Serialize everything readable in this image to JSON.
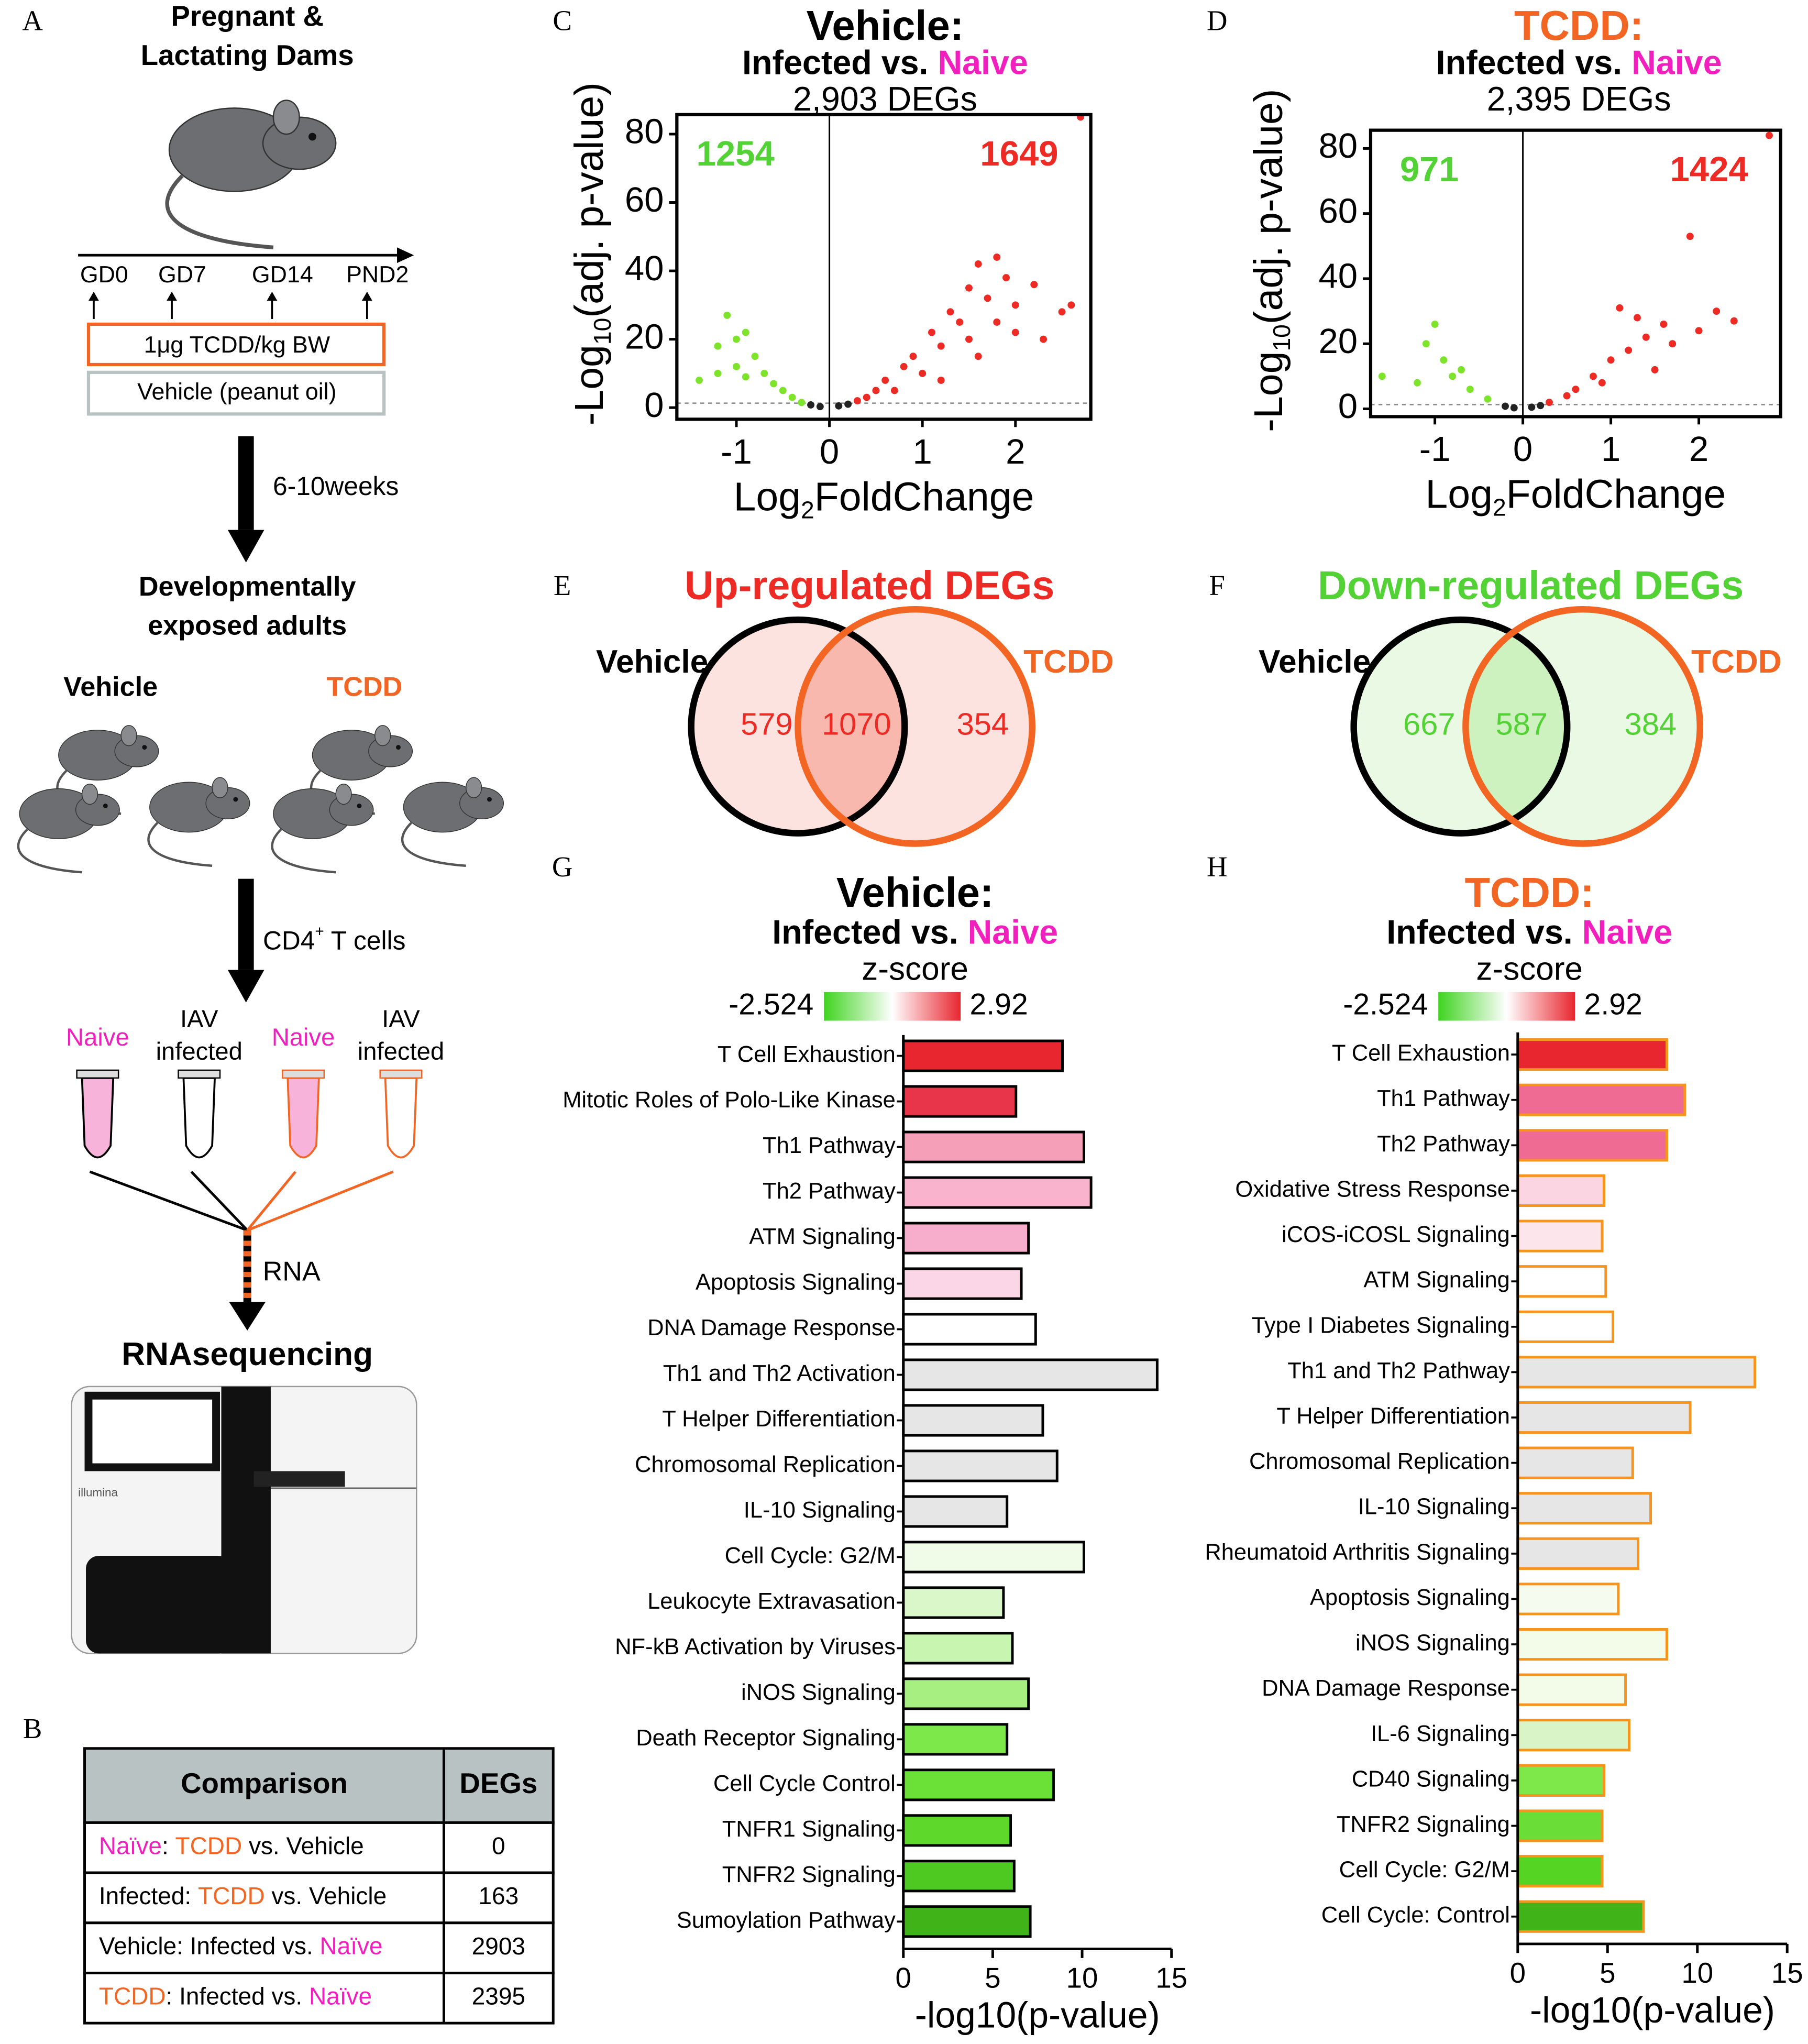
{
  "panel_labels": [
    "A",
    "B",
    "C",
    "D",
    "E",
    "F",
    "G",
    "H"
  ],
  "panel_a": {
    "title": [
      "Pregnant &",
      "Lactating Dams"
    ],
    "timeline": [
      "GD0",
      "GD7",
      "GD14",
      "PND2"
    ],
    "treatment": "1μg TCDD/kg BW",
    "control": "Vehicle (peanut oil)",
    "interval": "6-10weeks",
    "adults": [
      "Developmentally",
      "exposed adults"
    ],
    "groups": [
      {
        "text": "Vehicle",
        "color": "#000000"
      },
      {
        "text": "TCDD",
        "color": "#f26522"
      }
    ],
    "cells": [
      "CD4",
      "+",
      " T cells"
    ],
    "samples": [
      {
        "lines": [
          "Naive"
        ],
        "color": "#f21fbf",
        "tube": "#000000",
        "liquid": "#f7b3d9"
      },
      {
        "lines": [
          "IAV",
          "infected"
        ],
        "color": "#000000",
        "tube": "#000000",
        "liquid": "#ffffff"
      },
      {
        "lines": [
          "Naive"
        ],
        "color": "#f21fbf",
        "tube": "#f26522",
        "liquid": "#f7b3d9"
      },
      {
        "lines": [
          "IAV",
          "infected"
        ],
        "color": "#000000",
        "tube": "#f26522",
        "liquid": "#ffffff"
      }
    ],
    "rna": "RNA",
    "sequencing": "RNAsequencing",
    "instrument": "illumina"
  },
  "panel_b": {
    "header": [
      "Comparison",
      "DEGs"
    ],
    "rows": [
      {
        "comparison": [
          {
            "text": "Naïve",
            "color": "#f21fbf"
          },
          {
            "text": ": ",
            "color": "#000000"
          },
          {
            "text": "TCDD",
            "color": "#f26522"
          },
          {
            "text": " vs. Vehicle",
            "color": "#000000"
          }
        ],
        "degs": 0
      },
      {
        "comparison": [
          {
            "text": "Infected: ",
            "color": "#000000"
          },
          {
            "text": "TCDD",
            "color": "#f26522"
          },
          {
            "text": " vs. Vehicle",
            "color": "#000000"
          }
        ],
        "degs": 163
      },
      {
        "comparison": [
          {
            "text": "Vehicle: Infected vs. ",
            "color": "#000000"
          },
          {
            "text": "Naïve",
            "color": "#f21fbf"
          }
        ],
        "degs": 2903
      },
      {
        "comparison": [
          {
            "text": "TCDD",
            "color": "#f26522"
          },
          {
            "text": ": Infected vs. ",
            "color": "#000000"
          },
          {
            "text": "Naïve",
            "color": "#f21fbf"
          }
        ],
        "degs": 2395
      }
    ]
  },
  "chart_data": [
    {
      "type": "scatter",
      "title": "Vehicle:",
      "title_color": "#000000",
      "subtitle": [
        {
          "text": "Infected vs. ",
          "color": "#000000"
        },
        {
          "text": "Naive",
          "color": "#f21fbf"
        }
      ],
      "subtitle2": "2,903 DEGs",
      "xlabel": [
        "Log",
        "2",
        "FoldChange"
      ],
      "ylabel": [
        "-Log",
        "10",
        "(adj. p-value)"
      ],
      "xlim": [
        -1.64,
        2.81
      ],
      "ylim": [
        -3.4,
        85.7
      ],
      "xticks": [
        -1,
        0,
        1,
        2
      ],
      "yticks": [
        0,
        20,
        40,
        60,
        80
      ],
      "threshold": 1.3,
      "annotations": [
        {
          "text": "1254",
          "color": "#52d235"
        },
        {
          "text": "1649",
          "color": "#ee2a24"
        }
      ],
      "series": [
        {
          "color": "#ee2a24",
          "x": [
            2.6,
            2.5,
            1.8,
            1.6,
            1.9,
            2.2,
            1.5,
            1.7,
            2.0,
            1.3,
            1.4,
            1.1,
            1.2,
            0.9,
            0.8,
            0.6,
            0.5,
            0.4,
            0.3,
            1.0,
            1.5,
            2.0,
            1.8,
            2.3,
            1.6,
            0.7,
            1.2,
            2.7
          ],
          "y": [
            30,
            28,
            44,
            42,
            38,
            36,
            35,
            32,
            30,
            28,
            25,
            22,
            18,
            15,
            12,
            8,
            5,
            3,
            2,
            10,
            20,
            22,
            25,
            20,
            15,
            5,
            8,
            85
          ]
        },
        {
          "color": "#7ee32b",
          "x": [
            -1.1,
            -1.0,
            -1.2,
            -0.9,
            -1.4,
            -0.8,
            -0.7,
            -0.6,
            -0.5,
            -0.4,
            -0.3,
            -1.0,
            -0.9,
            -1.2
          ],
          "y": [
            27,
            20,
            18,
            22,
            8,
            15,
            10,
            7,
            5,
            3,
            1.5,
            12,
            9,
            10
          ]
        },
        {
          "color": "#222222",
          "x": [
            0.1,
            -0.1,
            0.2,
            -0.2
          ],
          "y": [
            0.5,
            0.3,
            1,
            0.8
          ]
        }
      ]
    },
    {
      "type": "scatter",
      "title": "TCDD:",
      "title_color": "#f26522",
      "subtitle": [
        {
          "text": "Infected vs. ",
          "color": "#000000"
        },
        {
          "text": "Naive",
          "color": "#f21fbf"
        }
      ],
      "subtitle2": "2,395 DEGs",
      "xlabel": [
        "Log",
        "2",
        "FoldChange"
      ],
      "ylabel": [
        "-Log",
        "10",
        "(adj. p-value)"
      ],
      "xlim": [
        -1.73,
        2.93
      ],
      "ylim": [
        -2.4,
        85.6
      ],
      "xticks": [
        -1,
        0,
        1,
        2
      ],
      "yticks": [
        0,
        20,
        40,
        60,
        80
      ],
      "threshold": 1.3,
      "annotations": [
        {
          "text": "971",
          "color": "#52d235"
        },
        {
          "text": "1424",
          "color": "#ee2a24"
        }
      ],
      "series": [
        {
          "color": "#ee2a24",
          "x": [
            1.9,
            2.2,
            2.4,
            1.1,
            1.3,
            1.6,
            1.4,
            1.2,
            1.0,
            0.8,
            0.6,
            0.5,
            0.3,
            1.7,
            2.0,
            1.5,
            0.9,
            2.8
          ],
          "y": [
            53,
            30,
            27,
            31,
            28,
            26,
            22,
            18,
            15,
            10,
            6,
            4,
            2,
            20,
            24,
            12,
            8,
            84
          ]
        },
        {
          "color": "#7ee32b",
          "x": [
            -1.0,
            -1.1,
            -0.9,
            -1.6,
            -0.8,
            -0.6,
            -0.4,
            -1.2,
            -0.7
          ],
          "y": [
            26,
            20,
            15,
            10,
            10,
            6,
            3,
            8,
            12
          ]
        },
        {
          "color": "#222222",
          "x": [
            0.1,
            -0.1,
            0.2,
            -0.2
          ],
          "y": [
            0.5,
            0.3,
            1,
            0.8
          ]
        }
      ]
    },
    {
      "type": "venn",
      "title": "Up-regulated DEGs",
      "title_color": "#ee2a24",
      "sets": [
        {
          "text": "Vehicle",
          "color": "#000000"
        },
        {
          "text": "TCDD",
          "color": "#f26522"
        }
      ],
      "values": [
        579,
        1070,
        354
      ],
      "value_color": "#ee2a24",
      "fills": [
        "#fde3e0",
        "#f8b8ae",
        "#fde3e0"
      ]
    },
    {
      "type": "venn",
      "title": "Down-regulated DEGs",
      "title_color": "#52d235",
      "sets": [
        {
          "text": "Vehicle",
          "color": "#000000"
        },
        {
          "text": "TCDD",
          "color": "#f26522"
        }
      ],
      "values": [
        667,
        587,
        384
      ],
      "value_color": "#52d235",
      "fills": [
        "#eaf9e3",
        "#cdf2c0",
        "#eaf9e3"
      ]
    },
    {
      "type": "barh",
      "title": "Vehicle:",
      "title_color": "#000000",
      "subtitle": [
        {
          "text": "Infected vs. ",
          "color": "#000000"
        },
        {
          "text": "Naive",
          "color": "#f21fbf"
        }
      ],
      "colorbar": {
        "label": "z-score",
        "min": -2.524,
        "max": 2.92,
        "colors": [
          "#3fd41f",
          "#ffffff",
          "#e8262f"
        ]
      },
      "categories": [
        "T Cell Exhaustion",
        "Mitotic Roles of Polo-Like Kinase",
        "Th1 Pathway",
        "Th2 Pathway",
        "ATM Signaling",
        "Apoptosis Signaling",
        "DNA Damage Response",
        "Th1 and Th2 Activation",
        "T Helper Differentiation",
        "Chromosomal Replication",
        "IL-10 Signaling",
        "Cell Cycle: G2/M",
        "Leukocyte Extravasation",
        "NF-kB Activation by Viruses",
        "iNOS Signaling",
        "Death Receptor Signaling",
        "Cell Cycle Control",
        "TNFR1 Signaling",
        "TNFR2 Signaling",
        "Sumoylation Pathway"
      ],
      "values": [
        8.9,
        6.3,
        10.1,
        10.5,
        7.0,
        6.6,
        7.4,
        14.2,
        7.8,
        8.6,
        5.8,
        10.1,
        5.6,
        6.1,
        7.0,
        5.8,
        8.4,
        6.0,
        6.2,
        7.1
      ],
      "colors": [
        "#e8262f",
        "#e8354a",
        "#f5a0b8",
        "#f9b3cc",
        "#f7aecd",
        "#fbd6e6",
        "#ffffff",
        "#e6e6e6",
        "#e6e6e6",
        "#e6e6e6",
        "#e6e6e6",
        "#f0fbe8",
        "#d9f7c8",
        "#c8f5b0",
        "#a6ef80",
        "#7de84a",
        "#6be036",
        "#5ed82a",
        "#4ec921",
        "#3fb318"
      ],
      "edge_color": "#000000",
      "xlim": [
        0,
        15
      ],
      "xticks": [
        0,
        5,
        10,
        15
      ],
      "xlabel": "-log10(p-value)"
    },
    {
      "type": "barh",
      "title": "TCDD:",
      "title_color": "#f26522",
      "subtitle": [
        {
          "text": "Infected vs. ",
          "color": "#000000"
        },
        {
          "text": "Naive",
          "color": "#f21fbf"
        }
      ],
      "colorbar": {
        "label": "z-score",
        "min": -2.524,
        "max": 2.92,
        "colors": [
          "#3fd41f",
          "#ffffff",
          "#e8262f"
        ]
      },
      "categories": [
        "T Cell Exhaustion",
        "Th1 Pathway",
        "Th2 Pathway",
        "Oxidative Stress Response",
        "iCOS-iCOSL Signaling",
        "ATM Signaling",
        "Type I Diabetes Signaling",
        "Th1 and Th2 Pathway",
        "T Helper Differentiation",
        "Chromosomal Replication",
        "IL-10 Signaling",
        "Rheumatoid Arthritis Signaling",
        "Apoptosis Signaling",
        "iNOS Signaling",
        "DNA Damage Response",
        "IL-6 Signaling",
        "CD40 Signaling",
        "TNFR2 Signaling",
        "Cell Cycle: G2/M",
        "Cell Cycle: Control"
      ],
      "values": [
        8.3,
        9.3,
        8.3,
        4.8,
        4.7,
        4.9,
        5.3,
        13.2,
        9.6,
        6.4,
        7.4,
        6.7,
        5.6,
        8.3,
        6.0,
        6.2,
        4.8,
        4.7,
        4.7,
        7.0
      ],
      "colors": [
        "#e8262f",
        "#f06b93",
        "#f06b93",
        "#fcd5e2",
        "#fde5ec",
        "#ffffff",
        "#ffffff",
        "#e6e6e6",
        "#e6e6e6",
        "#e6e6e6",
        "#e6e6e6",
        "#e6e6e6",
        "#f5fbef",
        "#f3fbe9",
        "#f3fbe9",
        "#d9f5c8",
        "#7ee84b",
        "#6ade37",
        "#55d423",
        "#3fb318"
      ],
      "edge_color": "#f7941d",
      "xlim": [
        0,
        15
      ],
      "xticks": [
        0,
        5,
        10,
        15
      ],
      "xlabel": "-log10(p-value)"
    }
  ]
}
